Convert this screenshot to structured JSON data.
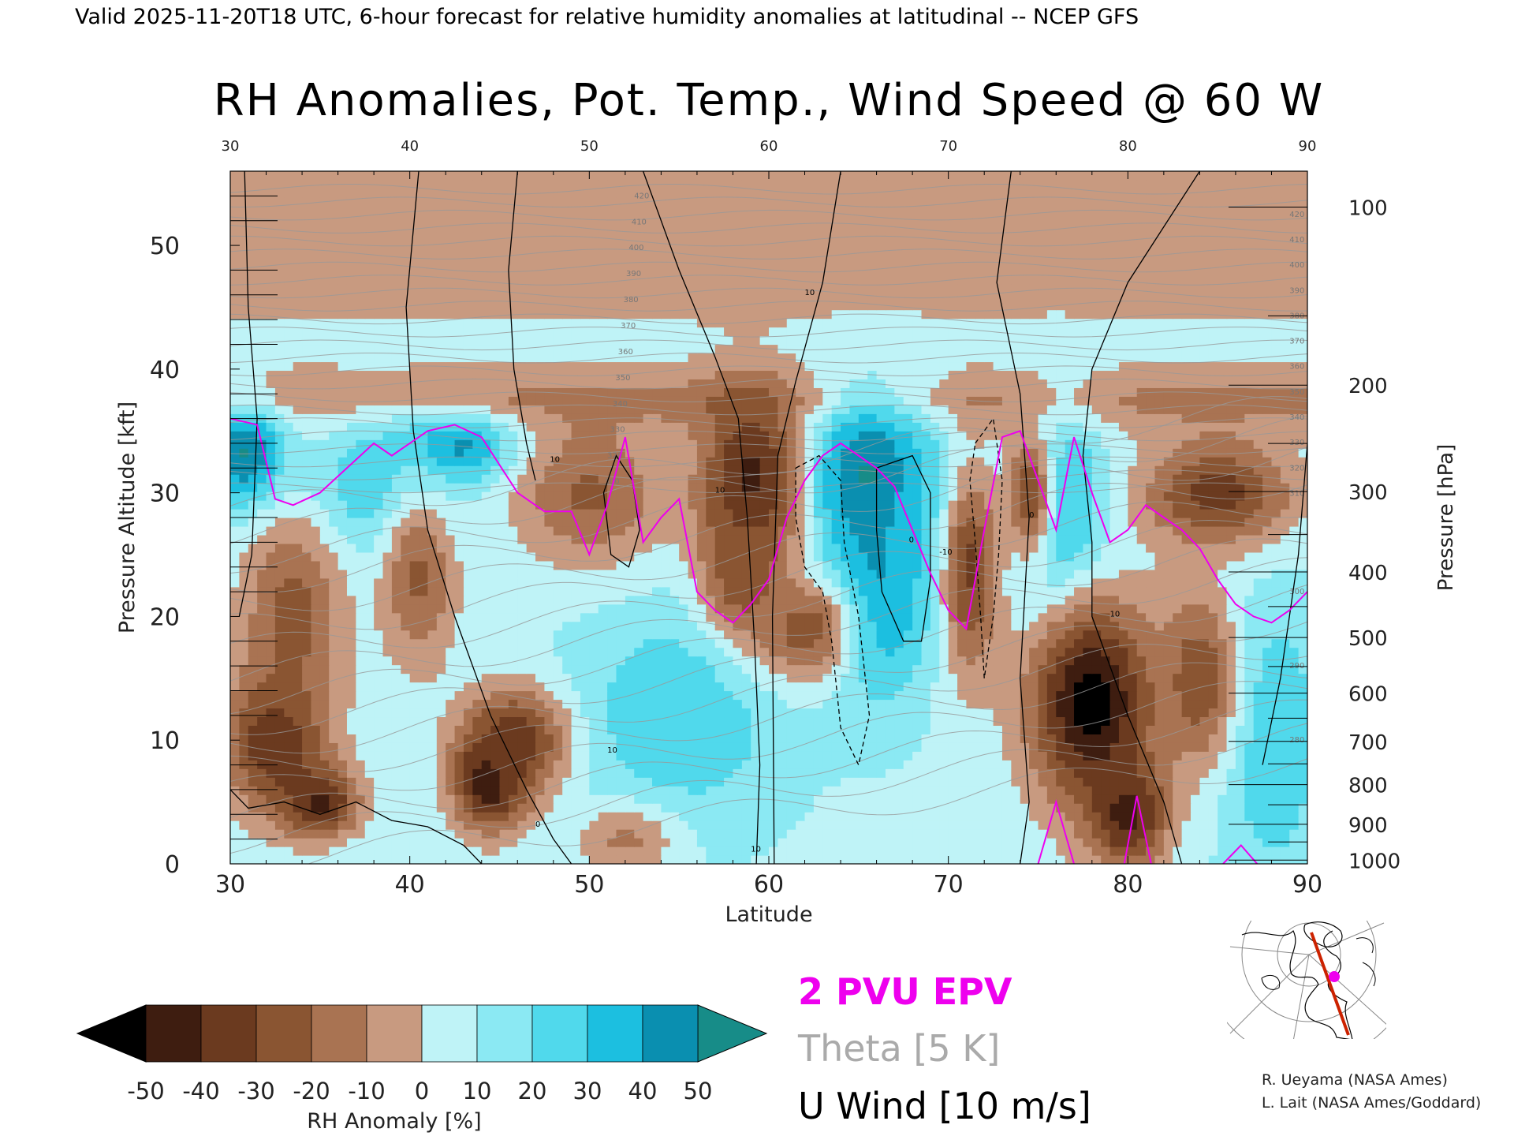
{
  "header": {
    "valid_line": "Valid 2025-11-20T18 UTC, 6-hour forecast for relative humidity anomalies at latitudinal -- NCEP GFS"
  },
  "chart_data": {
    "type": "heatmap",
    "title": "RH Anomalies, Pot. Temp., Wind Speed @ 60 W",
    "xlabel": "Latitude",
    "ylabel": "Pressure Altitude [kft]",
    "y2label": "Pressure [hPa]",
    "xlim": [
      30,
      90
    ],
    "ylim": [
      0,
      56
    ],
    "x_ticks": [
      30,
      40,
      50,
      60,
      70,
      80,
      90
    ],
    "x_tick_labels": [
      "30",
      "40",
      "50",
      "60",
      "70",
      "80",
      "90"
    ],
    "y_ticks": [
      0,
      10,
      20,
      30,
      40,
      50
    ],
    "y_tick_labels": [
      "0",
      "10",
      "20",
      "30",
      "40",
      "50"
    ],
    "pressure_ticks": [
      {
        "hpa": 100,
        "kft": 53.1,
        "label": "100"
      },
      {
        "hpa": 200,
        "kft": 38.7,
        "label": "200"
      },
      {
        "hpa": 300,
        "kft": 30.1,
        "label": "300"
      },
      {
        "hpa": 400,
        "kft": 23.6,
        "label": "400"
      },
      {
        "hpa": 500,
        "kft": 18.3,
        "label": "500"
      },
      {
        "hpa": 600,
        "kft": 13.8,
        "label": "600"
      },
      {
        "hpa": 700,
        "kft": 9.9,
        "label": "700"
      },
      {
        "hpa": 800,
        "kft": 6.4,
        "label": "800"
      },
      {
        "hpa": 900,
        "kft": 3.2,
        "label": "900"
      },
      {
        "hpa": 1000,
        "kft": 0.3,
        "label": "1000"
      }
    ],
    "grid": false,
    "colorbar": {
      "label": "RH Anomaly [%]",
      "levels": [
        -50,
        -40,
        -30,
        -20,
        -10,
        0,
        10,
        20,
        30,
        40,
        50
      ],
      "tick_labels": [
        "-50",
        "-40",
        "-30",
        "-20",
        "-10",
        "0",
        "10",
        "20",
        "30",
        "40",
        "50"
      ],
      "bin_colors": [
        "#3e1d10",
        "#6b3a1f",
        "#8a5532",
        "#a97352",
        "#c89a80",
        "#e8d3c8",
        "#bff3f7",
        "#8be9f3",
        "#50d9ec",
        "#1cbfe0",
        "#0a8fb0"
      ],
      "under_color": "#000000",
      "over_color": "#178c88"
    },
    "rh_field": {
      "description_free": true,
      "base_anomaly": 8,
      "blobs": [
        {
          "lat": 31,
          "kft": 33,
          "value": 55,
          "slat": 1.5,
          "skft": 3
        },
        {
          "lat": 42.5,
          "kft": 33.5,
          "value": 50,
          "slat": 2.5,
          "skft": 2
        },
        {
          "lat": 38,
          "kft": 30,
          "value": 30,
          "slat": 3,
          "skft": 4
        },
        {
          "lat": 65.5,
          "kft": 31,
          "value": 55,
          "slat": 2.5,
          "skft": 5
        },
        {
          "lat": 66,
          "kft": 22,
          "value": 45,
          "slat": 2,
          "skft": 6
        },
        {
          "lat": 69,
          "kft": 27,
          "value": 35,
          "slat": 1.5,
          "skft": 5
        },
        {
          "lat": 76,
          "kft": 28,
          "value": 40,
          "slat": 2,
          "skft": 6
        },
        {
          "lat": 55,
          "kft": 12,
          "value": 30,
          "slat": 4,
          "skft": 6
        },
        {
          "lat": 88,
          "kft": 10,
          "value": 30,
          "slat": 2,
          "skft": 8
        },
        {
          "lat": 32.5,
          "kft": 10,
          "value": -42,
          "slat": 2,
          "skft": 4
        },
        {
          "lat": 35,
          "kft": 5,
          "value": -45,
          "slat": 1.5,
          "skft": 2
        },
        {
          "lat": 33.5,
          "kft": 20,
          "value": -25,
          "slat": 2,
          "skft": 6
        },
        {
          "lat": 44.5,
          "kft": 7,
          "value": -52,
          "slat": 1.5,
          "skft": 3
        },
        {
          "lat": 46,
          "kft": 10,
          "value": -35,
          "slat": 2,
          "skft": 3
        },
        {
          "lat": 40.5,
          "kft": 23,
          "value": -22,
          "slat": 1.5,
          "skft": 5
        },
        {
          "lat": 50,
          "kft": 30,
          "value": -22,
          "slat": 3,
          "skft": 4
        },
        {
          "lat": 59,
          "kft": 31,
          "value": -45,
          "slat": 2,
          "skft": 5
        },
        {
          "lat": 58.5,
          "kft": 24,
          "value": -30,
          "slat": 1.5,
          "skft": 4
        },
        {
          "lat": 62,
          "kft": 19,
          "value": -25,
          "slat": 2,
          "skft": 3
        },
        {
          "lat": 71.2,
          "kft": 24,
          "value": -32,
          "slat": 1.2,
          "skft": 6
        },
        {
          "lat": 74.5,
          "kft": 30,
          "value": -28,
          "slat": 1,
          "skft": 4
        },
        {
          "lat": 78,
          "kft": 13,
          "value": -55,
          "slat": 2.5,
          "skft": 6
        },
        {
          "lat": 80,
          "kft": 4,
          "value": -45,
          "slat": 1.5,
          "skft": 3
        },
        {
          "lat": 85,
          "kft": 30,
          "value": -35,
          "slat": 3,
          "skft": 3
        },
        {
          "lat": 84,
          "kft": 15,
          "value": -28,
          "slat": 1.5,
          "skft": 5
        },
        {
          "lat": 52,
          "kft": 2,
          "value": -12,
          "slat": 2,
          "skft": 2
        }
      ],
      "upper_band": {
        "lat_from": 30,
        "lat_to": 90,
        "kft_from": 35,
        "kft_to": 40,
        "value": -18
      },
      "stratosphere_value": -4
    },
    "theta_contours": {
      "interval_K": 5,
      "labels_left": [
        "420",
        "410",
        "400",
        "390",
        "380",
        "370",
        "360",
        "350",
        "340",
        "330",
        "320",
        "300"
      ],
      "labels_right": [
        "420",
        "410",
        "400",
        "390",
        "380",
        "370",
        "360",
        "350",
        "340",
        "330",
        "320",
        "310",
        "300",
        "290",
        "280"
      ]
    },
    "u_wind": {
      "interval_ms": 10,
      "contour_labels": [
        "0",
        "10",
        "-10"
      ],
      "zero_line_lats": [
        40.5,
        58.5,
        60,
        73.5,
        89.5
      ]
    },
    "epv_2pvu_line": {
      "points": [
        [
          30,
          36
        ],
        [
          31.5,
          35.5
        ],
        [
          32.5,
          29.5
        ],
        [
          33.5,
          29
        ],
        [
          35,
          30
        ],
        [
          36.5,
          32
        ],
        [
          38,
          34
        ],
        [
          39,
          33
        ],
        [
          40,
          34
        ],
        [
          41,
          35
        ],
        [
          42.5,
          35.5
        ],
        [
          44,
          34.5
        ],
        [
          46,
          30
        ],
        [
          47.5,
          28.5
        ],
        [
          49,
          28.5
        ],
        [
          50,
          25
        ],
        [
          51,
          29
        ],
        [
          52,
          34.5
        ],
        [
          53,
          26
        ],
        [
          54,
          28
        ],
        [
          55,
          29.5
        ],
        [
          56,
          22
        ],
        [
          57,
          20.5
        ],
        [
          58,
          19.5
        ],
        [
          59,
          21
        ],
        [
          60,
          23
        ],
        [
          61,
          28
        ],
        [
          62,
          31
        ],
        [
          63,
          33
        ],
        [
          64,
          34
        ],
        [
          66,
          32
        ],
        [
          67,
          30.5
        ],
        [
          68,
          27
        ],
        [
          69,
          23.5
        ],
        [
          70,
          20.5
        ],
        [
          71,
          19
        ],
        [
          72,
          27
        ],
        [
          73,
          34.5
        ],
        [
          74,
          35
        ],
        [
          75,
          31
        ],
        [
          76,
          27
        ],
        [
          77,
          34.5
        ],
        [
          78,
          30
        ],
        [
          79,
          26
        ],
        [
          80,
          27
        ],
        [
          81,
          29
        ],
        [
          82,
          28
        ],
        [
          83,
          27
        ],
        [
          84,
          25.5
        ],
        [
          85,
          23
        ],
        [
          86,
          21
        ],
        [
          87,
          20
        ],
        [
          88,
          19.5
        ],
        [
          89,
          20.5
        ],
        [
          90,
          22
        ]
      ],
      "surface_loops": [
        [
          [
            75,
            0
          ],
          [
            76,
            5
          ],
          [
            77,
            0
          ]
        ],
        [
          [
            79.8,
            0
          ],
          [
            80.5,
            5.5
          ],
          [
            81.3,
            0
          ]
        ],
        [
          [
            85.3,
            0
          ],
          [
            86.3,
            1.5
          ],
          [
            87.2,
            0
          ]
        ]
      ]
    },
    "legend": {
      "epv": "2 PVU EPV",
      "theta": "Theta [5 K]",
      "u": "U Wind [10 m/s]",
      "colors": {
        "epv": "#ee00ee",
        "theta": "#aaaaaa",
        "u": "#000000"
      }
    },
    "inset_map": {
      "section_longitude": 60,
      "marker_color": "#ee00ee",
      "line_color": "#cc2200"
    }
  },
  "credits": {
    "line1": "R. Ueyama (NASA Ames)",
    "line2": "L. Lait (NASA Ames/Goddard)"
  }
}
